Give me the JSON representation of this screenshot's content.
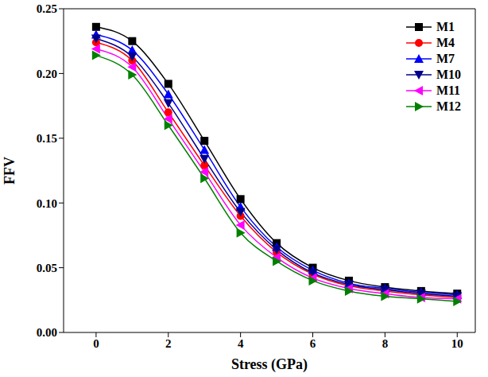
{
  "chart_data": {
    "type": "line",
    "x_label": "Stress (GPa)",
    "y_label": "FFV",
    "x": [
      0,
      1,
      2,
      3,
      4,
      5,
      6,
      7,
      8,
      9,
      10
    ],
    "xlim": [
      -0.9,
      10.5
    ],
    "xticks": [
      0,
      2,
      4,
      6,
      8,
      10
    ],
    "ylim": [
      0,
      0.25
    ],
    "yticks": [
      {
        "value": 0,
        "label": "0.00"
      },
      {
        "value": 0.05,
        "label": "0.05"
      },
      {
        "value": 0.1,
        "label": "0.10"
      },
      {
        "value": 0.15,
        "label": "0.15"
      },
      {
        "value": 0.2,
        "label": "0.20"
      },
      {
        "value": 0.25,
        "label": "0.25"
      }
    ],
    "grid": false,
    "legend": "upper right",
    "series": [
      {
        "name": "M1",
        "color": "#000000",
        "marker": "square",
        "line_style": "solid",
        "values": [
          0.236,
          0.225,
          0.192,
          0.148,
          0.103,
          0.069,
          0.05,
          0.04,
          0.035,
          0.032,
          0.03
        ]
      },
      {
        "name": "M4",
        "color": "#ff0000",
        "marker": "circle",
        "line_style": "solid",
        "values": [
          0.224,
          0.21,
          0.17,
          0.129,
          0.09,
          0.062,
          0.045,
          0.036,
          0.032,
          0.029,
          0.027
        ]
      },
      {
        "name": "M7",
        "color": "#0000ff",
        "marker": "triangle-up",
        "line_style": "solid",
        "values": [
          0.23,
          0.218,
          0.184,
          0.141,
          0.097,
          0.066,
          0.048,
          0.038,
          0.034,
          0.031,
          0.029
        ]
      },
      {
        "name": "M10",
        "color": "#00008b",
        "marker": "triangle-down",
        "line_style": "solid",
        "values": [
          0.227,
          0.213,
          0.177,
          0.134,
          0.093,
          0.064,
          0.046,
          0.037,
          0.033,
          0.03,
          0.028
        ]
      },
      {
        "name": "M11",
        "color": "#ff00ff",
        "marker": "triangle-left",
        "line_style": "solid",
        "values": [
          0.219,
          0.205,
          0.165,
          0.124,
          0.083,
          0.058,
          0.042,
          0.034,
          0.03,
          0.027,
          0.026
        ]
      },
      {
        "name": "M12",
        "color": "#008000",
        "marker": "triangle-right",
        "line_style": "solid",
        "values": [
          0.214,
          0.199,
          0.16,
          0.119,
          0.077,
          0.055,
          0.04,
          0.032,
          0.028,
          0.026,
          0.024
        ]
      }
    ]
  }
}
